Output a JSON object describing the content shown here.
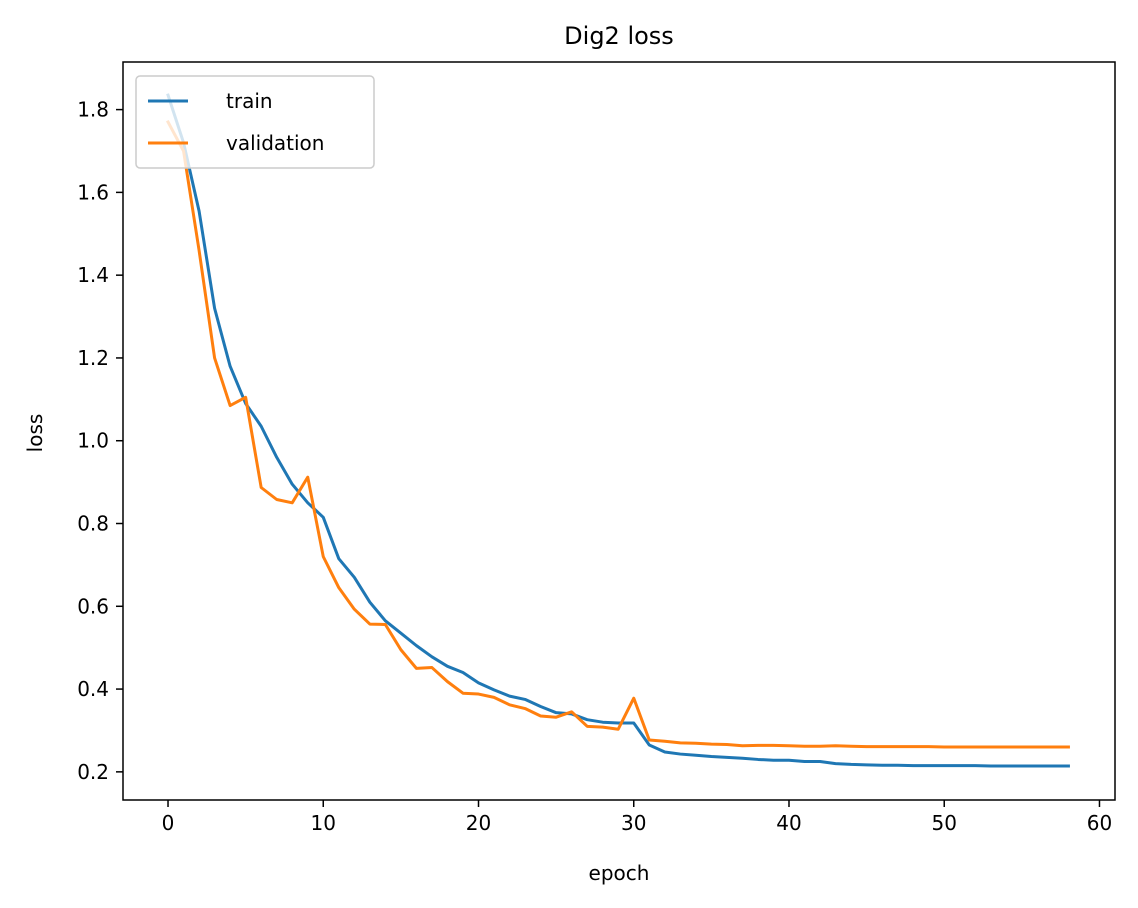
{
  "chart_data": {
    "type": "line",
    "title": "Dig2 loss",
    "xlabel": "epoch",
    "ylabel": "loss",
    "xlim": [
      -2.9,
      61
    ],
    "ylim": [
      0.132,
      1.915
    ],
    "xticks": [
      0,
      10,
      20,
      30,
      40,
      50,
      60
    ],
    "yticks": [
      0.2,
      0.4,
      0.6,
      0.8,
      1.0,
      1.2,
      1.4,
      1.6,
      1.8
    ],
    "ytick_labels": [
      "0.2",
      "0.4",
      "0.6",
      "0.8",
      "1.0",
      "1.2",
      "1.4",
      "1.6",
      "1.8"
    ],
    "legend_position": "upper-left",
    "grid": false,
    "series": [
      {
        "name": "train",
        "color": "#1f77b4",
        "x": [
          0,
          1,
          2,
          3,
          4,
          5,
          6,
          7,
          8,
          9,
          10,
          11,
          12,
          13,
          14,
          15,
          16,
          17,
          18,
          19,
          20,
          21,
          22,
          23,
          24,
          25,
          26,
          27,
          28,
          29,
          30,
          31,
          32,
          33,
          34,
          35,
          36,
          37,
          38,
          39,
          40,
          41,
          42,
          43,
          44,
          45,
          46,
          47,
          48,
          49,
          50,
          51,
          52,
          53,
          54,
          55,
          56,
          57,
          58
        ],
        "values": [
          1.835,
          1.72,
          1.555,
          1.32,
          1.18,
          1.09,
          1.035,
          0.96,
          0.895,
          0.85,
          0.815,
          0.715,
          0.67,
          0.61,
          0.565,
          0.535,
          0.505,
          0.478,
          0.455,
          0.44,
          0.415,
          0.398,
          0.383,
          0.375,
          0.358,
          0.343,
          0.34,
          0.326,
          0.32,
          0.318,
          0.318,
          0.265,
          0.248,
          0.243,
          0.24,
          0.237,
          0.235,
          0.233,
          0.23,
          0.228,
          0.228,
          0.225,
          0.225,
          0.22,
          0.218,
          0.217,
          0.216,
          0.216,
          0.215,
          0.215,
          0.215,
          0.215,
          0.215,
          0.214,
          0.214,
          0.214,
          0.214,
          0.214,
          0.214
        ]
      },
      {
        "name": "validation",
        "color": "#ff7f0e",
        "x": [
          0,
          1,
          2,
          3,
          4,
          5,
          6,
          7,
          8,
          9,
          10,
          11,
          12,
          13,
          14,
          15,
          16,
          17,
          18,
          19,
          20,
          21,
          22,
          23,
          24,
          25,
          26,
          27,
          28,
          29,
          30,
          31,
          32,
          33,
          34,
          35,
          36,
          37,
          38,
          39,
          40,
          41,
          42,
          43,
          44,
          45,
          46,
          47,
          48,
          49,
          50,
          51,
          52,
          53,
          54,
          55,
          56,
          57,
          58
        ],
        "values": [
          1.77,
          1.7,
          1.46,
          1.2,
          1.085,
          1.105,
          0.887,
          0.858,
          0.85,
          0.912,
          0.72,
          0.645,
          0.593,
          0.557,
          0.556,
          0.495,
          0.45,
          0.452,
          0.418,
          0.39,
          0.388,
          0.38,
          0.362,
          0.353,
          0.335,
          0.332,
          0.345,
          0.31,
          0.308,
          0.303,
          0.378,
          0.277,
          0.274,
          0.27,
          0.269,
          0.267,
          0.266,
          0.263,
          0.264,
          0.264,
          0.263,
          0.262,
          0.262,
          0.263,
          0.262,
          0.261,
          0.261,
          0.261,
          0.261,
          0.261,
          0.26,
          0.26,
          0.26,
          0.26,
          0.26,
          0.26,
          0.26,
          0.26,
          0.26
        ]
      }
    ]
  }
}
